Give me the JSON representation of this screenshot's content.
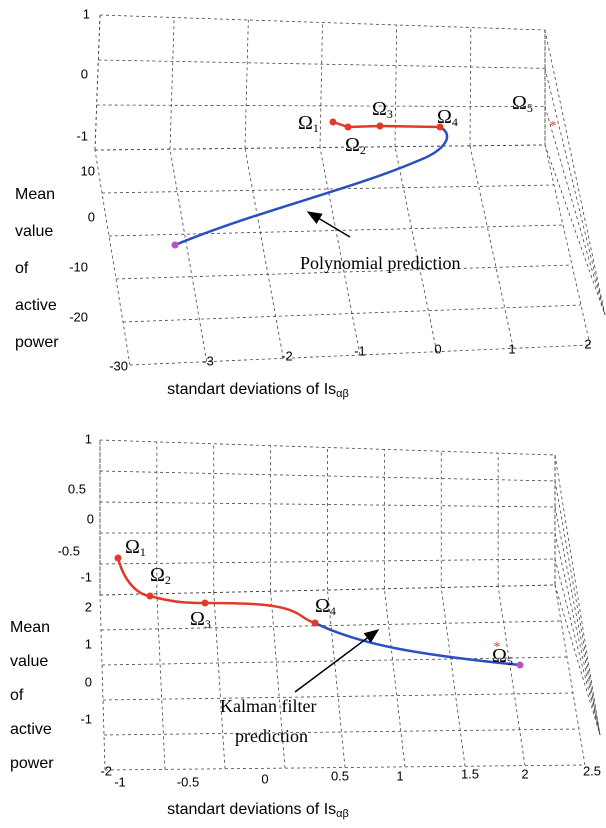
{
  "panels": [
    {
      "z_ticks": [
        "1",
        "0",
        "-1"
      ],
      "y_ticks": [
        "10",
        "0",
        "-10",
        "-20",
        "-30"
      ],
      "x_ticks": [
        "-3",
        "-2",
        "-1",
        "0",
        "1",
        "2"
      ],
      "side_label": [
        "Mean",
        "value",
        "of",
        "active",
        "power"
      ],
      "x_label": {
        "text": "standart deviations of Is",
        "sub": "αβ"
      },
      "points": [
        {
          "symbol": "Ω",
          "sub": "1"
        },
        {
          "symbol": "Ω",
          "sub": "2"
        },
        {
          "symbol": "Ω",
          "sub": "3"
        },
        {
          "symbol": "Ω",
          "sub": "4"
        },
        {
          "symbol": "Ω",
          "sub": "5"
        }
      ],
      "annotation": [
        "Polynomial prediction"
      ]
    },
    {
      "z_ticks": [
        "1",
        "0.5",
        "0",
        "-0.5",
        "-1"
      ],
      "y_ticks": [
        "2",
        "1",
        "0",
        "-1",
        "-2"
      ],
      "x_ticks": [
        "-1",
        "-0.5",
        "0",
        "0.5",
        "1",
        "1.5",
        "2",
        "2.5"
      ],
      "side_label": [
        "Mean",
        "value",
        "of",
        "active",
        "power"
      ],
      "x_label": {
        "text": "standart deviations of Is",
        "sub": "αβ"
      },
      "points": [
        {
          "symbol": "Ω",
          "sub": "1"
        },
        {
          "symbol": "Ω",
          "sub": "2"
        },
        {
          "symbol": "Ω",
          "sub": "3"
        },
        {
          "symbol": "Ω",
          "sub": "4"
        },
        {
          "symbol": "Ω",
          "sub": "5"
        }
      ],
      "annotation": [
        "Kalman filter",
        "prediction"
      ]
    }
  ]
}
